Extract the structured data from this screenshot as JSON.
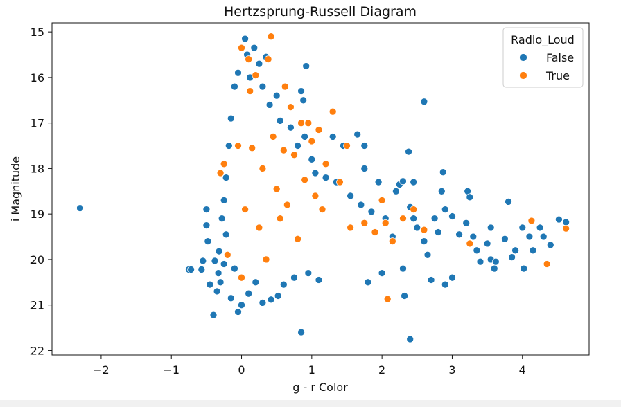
{
  "chart_data": {
    "type": "scatter",
    "title": "Hertzsprung-Russell Diagram",
    "xlabel": "g - r Color",
    "ylabel": "i Magnitude",
    "xlim": [
      -2.7,
      4.95
    ],
    "ylim": [
      22.1,
      14.8
    ],
    "y_inverted": true,
    "x_ticks": [
      "−2",
      "−1",
      "0",
      "1",
      "2",
      "3",
      "4"
    ],
    "x_tick_values": [
      -2,
      -1,
      0,
      1,
      2,
      3,
      4
    ],
    "y_ticks": [
      "15",
      "16",
      "17",
      "18",
      "19",
      "20",
      "21",
      "22"
    ],
    "y_tick_values": [
      15,
      16,
      17,
      18,
      19,
      20,
      21,
      22
    ],
    "grid": false,
    "legend": {
      "title": "Radio_Loud",
      "placement": "top-right",
      "entries": [
        "False",
        "True"
      ]
    },
    "colors": {
      "False": "#1f77b4",
      "True": "#ff7f0e"
    },
    "series": [
      {
        "name": "False",
        "color": "#1f77b4",
        "points": [
          [
            -2.3,
            18.87
          ],
          [
            -0.75,
            20.22
          ],
          [
            -0.72,
            20.22
          ],
          [
            -0.57,
            20.22
          ],
          [
            -0.55,
            20.03
          ],
          [
            -0.5,
            18.9
          ],
          [
            -0.5,
            19.25
          ],
          [
            -0.48,
            19.6
          ],
          [
            -0.45,
            20.55
          ],
          [
            -0.4,
            21.22
          ],
          [
            -0.38,
            20.03
          ],
          [
            -0.35,
            20.7
          ],
          [
            -0.33,
            20.3
          ],
          [
            -0.32,
            19.82
          ],
          [
            -0.3,
            20.5
          ],
          [
            -0.28,
            19.1
          ],
          [
            -0.25,
            18.7
          ],
          [
            -0.25,
            20.1
          ],
          [
            -0.22,
            18.2
          ],
          [
            -0.22,
            19.45
          ],
          [
            -0.18,
            17.5
          ],
          [
            -0.15,
            16.9
          ],
          [
            -0.15,
            20.85
          ],
          [
            -0.1,
            16.2
          ],
          [
            -0.1,
            20.2
          ],
          [
            -0.05,
            15.9
          ],
          [
            -0.05,
            21.15
          ],
          [
            0.0,
            21.0
          ],
          [
            0.05,
            15.15
          ],
          [
            0.08,
            15.5
          ],
          [
            0.1,
            20.75
          ],
          [
            0.12,
            16.0
          ],
          [
            0.18,
            15.35
          ],
          [
            0.2,
            20.5
          ],
          [
            0.25,
            15.7
          ],
          [
            0.3,
            16.2
          ],
          [
            0.3,
            20.95
          ],
          [
            0.35,
            15.55
          ],
          [
            0.4,
            16.6
          ],
          [
            0.42,
            20.88
          ],
          [
            0.5,
            16.4
          ],
          [
            0.52,
            20.8
          ],
          [
            0.55,
            16.95
          ],
          [
            0.6,
            20.55
          ],
          [
            0.7,
            17.1
          ],
          [
            0.75,
            20.4
          ],
          [
            0.8,
            17.5
          ],
          [
            0.85,
            16.3
          ],
          [
            0.85,
            21.6
          ],
          [
            0.88,
            16.5
          ],
          [
            0.9,
            17.3
          ],
          [
            0.92,
            15.75
          ],
          [
            0.95,
            20.3
          ],
          [
            1.0,
            17.8
          ],
          [
            1.05,
            18.1
          ],
          [
            1.1,
            20.45
          ],
          [
            1.2,
            18.2
          ],
          [
            1.3,
            17.3
          ],
          [
            1.35,
            18.3
          ],
          [
            1.45,
            17.5
          ],
          [
            1.55,
            18.6
          ],
          [
            1.65,
            17.25
          ],
          [
            1.7,
            18.8
          ],
          [
            1.75,
            17.5
          ],
          [
            1.75,
            18.0
          ],
          [
            1.8,
            20.5
          ],
          [
            1.85,
            18.95
          ],
          [
            1.95,
            18.3
          ],
          [
            2.0,
            20.3
          ],
          [
            2.05,
            19.1
          ],
          [
            2.15,
            19.5
          ],
          [
            2.2,
            18.5
          ],
          [
            2.25,
            18.35
          ],
          [
            2.3,
            18.28
          ],
          [
            2.3,
            20.2
          ],
          [
            2.32,
            20.8
          ],
          [
            2.38,
            17.63
          ],
          [
            2.4,
            18.85
          ],
          [
            2.4,
            21.75
          ],
          [
            2.45,
            18.3
          ],
          [
            2.45,
            19.1
          ],
          [
            2.5,
            19.3
          ],
          [
            2.6,
            16.53
          ],
          [
            2.6,
            19.6
          ],
          [
            2.65,
            19.9
          ],
          [
            2.7,
            20.45
          ],
          [
            2.75,
            19.1
          ],
          [
            2.8,
            19.4
          ],
          [
            2.85,
            18.5
          ],
          [
            2.87,
            18.08
          ],
          [
            2.9,
            18.9
          ],
          [
            2.9,
            20.55
          ],
          [
            3.0,
            19.05
          ],
          [
            3.0,
            20.4
          ],
          [
            3.1,
            19.45
          ],
          [
            3.2,
            19.2
          ],
          [
            3.22,
            18.5
          ],
          [
            3.25,
            18.63
          ],
          [
            3.3,
            19.5
          ],
          [
            3.35,
            19.8
          ],
          [
            3.4,
            20.05
          ],
          [
            3.5,
            19.65
          ],
          [
            3.55,
            19.3
          ],
          [
            3.55,
            20.0
          ],
          [
            3.6,
            20.2
          ],
          [
            3.62,
            20.05
          ],
          [
            3.75,
            19.55
          ],
          [
            3.8,
            18.73
          ],
          [
            3.85,
            19.95
          ],
          [
            3.9,
            19.8
          ],
          [
            4.0,
            19.3
          ],
          [
            4.02,
            20.2
          ],
          [
            4.1,
            19.5
          ],
          [
            4.15,
            19.8
          ],
          [
            4.25,
            19.3
          ],
          [
            4.3,
            19.5
          ],
          [
            4.4,
            19.68
          ],
          [
            4.52,
            19.12
          ],
          [
            4.62,
            19.18
          ]
        ]
      },
      {
        "name": "True",
        "color": "#ff7f0e",
        "points": [
          [
            -0.3,
            18.1
          ],
          [
            -0.25,
            17.9
          ],
          [
            -0.2,
            19.9
          ],
          [
            -0.05,
            17.5
          ],
          [
            0.0,
            15.35
          ],
          [
            0.0,
            20.4
          ],
          [
            0.05,
            18.9
          ],
          [
            0.1,
            15.6
          ],
          [
            0.12,
            16.3
          ],
          [
            0.15,
            17.55
          ],
          [
            0.2,
            15.95
          ],
          [
            0.25,
            19.3
          ],
          [
            0.3,
            18.0
          ],
          [
            0.35,
            20.0
          ],
          [
            0.38,
            15.6
          ],
          [
            0.42,
            15.1
          ],
          [
            0.45,
            17.3
          ],
          [
            0.5,
            18.45
          ],
          [
            0.55,
            19.1
          ],
          [
            0.6,
            17.6
          ],
          [
            0.62,
            16.2
          ],
          [
            0.65,
            18.8
          ],
          [
            0.7,
            16.65
          ],
          [
            0.75,
            17.7
          ],
          [
            0.8,
            19.55
          ],
          [
            0.85,
            17.0
          ],
          [
            0.9,
            18.25
          ],
          [
            0.95,
            17.0
          ],
          [
            1.0,
            17.4
          ],
          [
            1.05,
            18.6
          ],
          [
            1.1,
            17.15
          ],
          [
            1.15,
            18.9
          ],
          [
            1.2,
            17.9
          ],
          [
            1.3,
            16.75
          ],
          [
            1.4,
            18.3
          ],
          [
            1.5,
            17.5
          ],
          [
            1.55,
            19.3
          ],
          [
            1.75,
            19.2
          ],
          [
            1.9,
            19.4
          ],
          [
            2.0,
            18.7
          ],
          [
            2.05,
            19.2
          ],
          [
            2.08,
            20.87
          ],
          [
            2.15,
            19.6
          ],
          [
            2.3,
            19.1
          ],
          [
            2.45,
            18.9
          ],
          [
            2.6,
            19.35
          ],
          [
            3.25,
            19.65
          ],
          [
            4.13,
            19.15
          ],
          [
            4.35,
            20.1
          ],
          [
            4.62,
            19.32
          ]
        ]
      }
    ]
  }
}
